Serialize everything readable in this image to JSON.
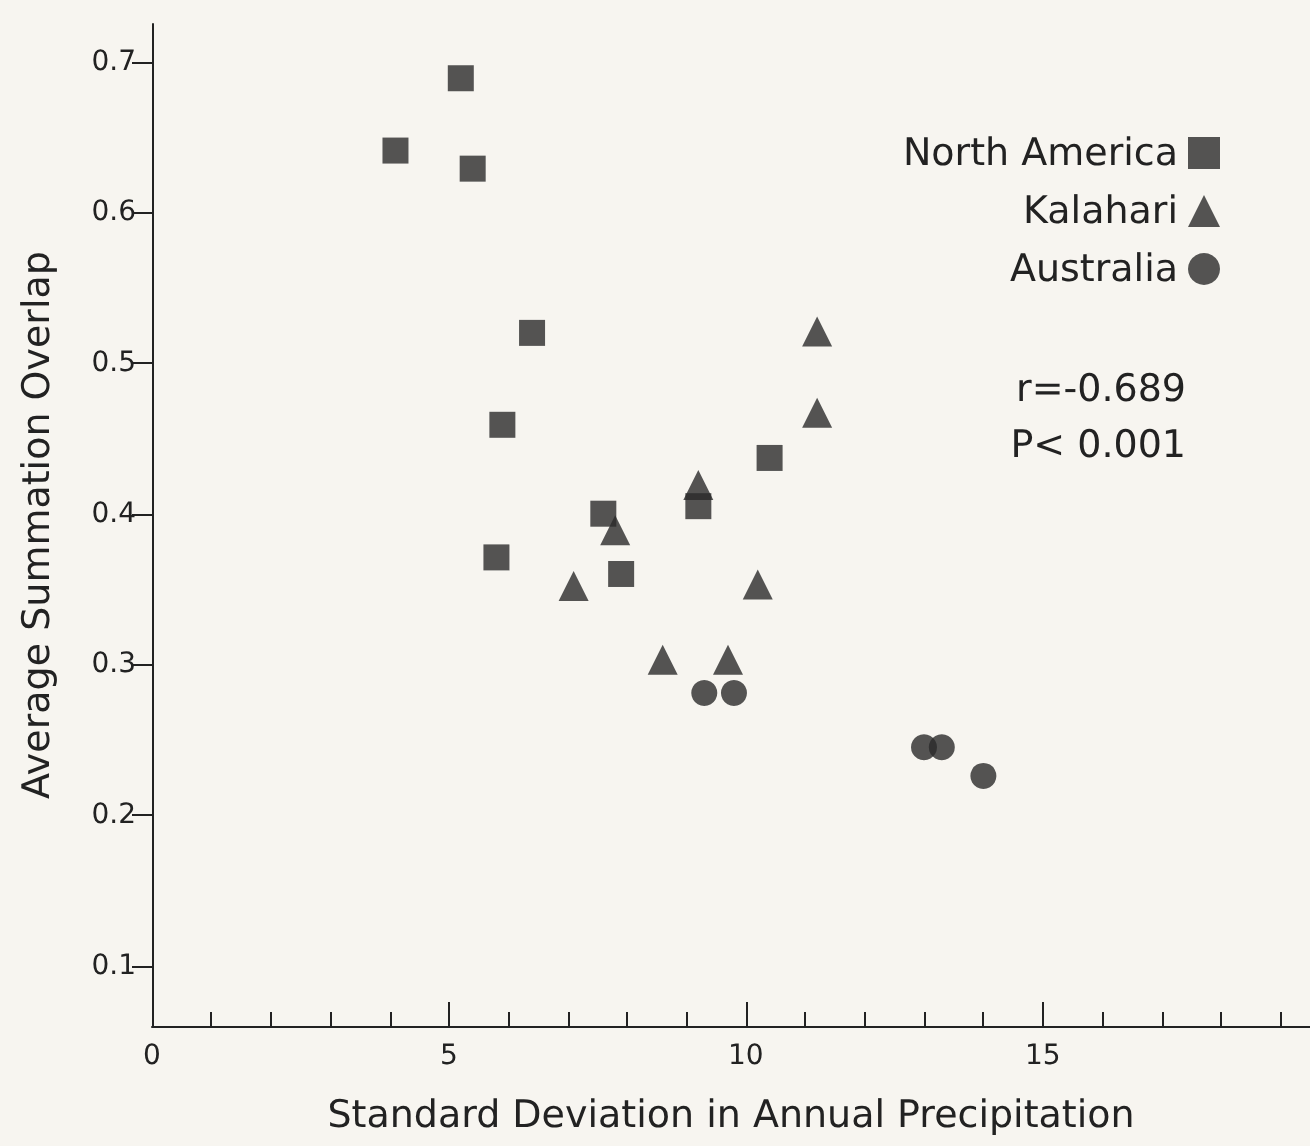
{
  "chart_data": {
    "type": "scatter",
    "xlabel": "Standard Deviation in Annual Precipitation",
    "ylabel": "Average Summation Overlap",
    "annotations": [
      "r=-0.689",
      "P< 0.001"
    ],
    "xlim": [
      0,
      19.5
    ],
    "xticks": [
      0,
      5,
      10,
      15
    ],
    "ylim": [
      0.06,
      0.725
    ],
    "yticks": [
      0.1,
      0.2,
      0.3,
      0.4,
      0.5,
      0.6,
      0.7
    ],
    "grid": false,
    "legend": "top right",
    "series": [
      {
        "name": "North America",
        "marker": "square",
        "color": "#2b2b2b",
        "x": [
          4.1,
          5.2,
          5.4,
          6.4,
          5.9,
          7.6,
          5.8,
          7.9,
          10.4,
          9.2
        ],
        "values": [
          0.641,
          0.689,
          0.629,
          0.52,
          0.459,
          0.4,
          0.371,
          0.36,
          0.437,
          0.405
        ]
      },
      {
        "name": "Kalahari",
        "marker": "triangle",
        "color": "#2b2b2b",
        "x": [
          11.2,
          11.2,
          9.2,
          7.8,
          7.1,
          10.2,
          8.6,
          9.7
        ],
        "values": [
          0.521,
          0.467,
          0.419,
          0.389,
          0.352,
          0.353,
          0.303,
          0.303
        ]
      },
      {
        "name": "Australia",
        "marker": "circle",
        "color": "#2b2b2b",
        "x": [
          9.3,
          9.8,
          13.0,
          13.3,
          14.0
        ],
        "values": [
          0.281,
          0.281,
          0.245,
          0.245,
          0.226
        ]
      }
    ]
  }
}
